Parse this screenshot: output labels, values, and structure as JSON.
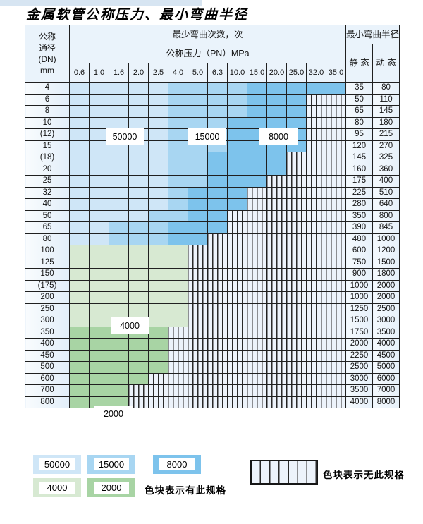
{
  "title": "金属软管公称压力、最小弯曲半径",
  "colors": {
    "l50": "#cfe6f7",
    "m15": "#a8d6f2",
    "d8": "#7dc3ec",
    "g4": "#d7e9d2",
    "g2": "#a8d4a4",
    "hatch_bg": "#edf3fb",
    "hatch_line": "#2a2a2a",
    "header_bg": "#eaf3fb",
    "border": "#202020"
  },
  "table": {
    "header": {
      "dn_lines": [
        "公称",
        "通径",
        "(DN)",
        "mm"
      ],
      "bend_count_label": "最少弯曲次数，次",
      "pressure_label": "公称压力（PN）MPa",
      "radius_label": "最小弯曲半径",
      "static_label": "静 态",
      "dynamic_label": "动 态"
    },
    "pressure_columns": [
      "0.6",
      "1.0",
      "1.6",
      "2.0",
      "2.5",
      "4.0",
      "5.0",
      "6.3",
      "10.0",
      "15.0",
      "20.0",
      "25.0",
      "32.0",
      "35.0"
    ],
    "zone_key": {
      "L": "50000",
      "M": "15000",
      "D": "8000",
      "G": "4000",
      "g": "2000",
      "H": "no_spec"
    },
    "rows": [
      {
        "dn": "4",
        "zones": "LLLLLMMMMDDDDD",
        "static": "35",
        "dynamic": "80"
      },
      {
        "dn": "6",
        "zones": "LLLLLMMMMDDDHH",
        "static": "50",
        "dynamic": "110"
      },
      {
        "dn": "8",
        "zones": "LLLLLMMMMDDDHH",
        "static": "65",
        "dynamic": "145"
      },
      {
        "dn": "10",
        "zones": "LLLLLMMMDDDDHH",
        "static": "80",
        "dynamic": "180"
      },
      {
        "dn": "(12)",
        "zones": "LLLLLMMMDDDDHH",
        "static": "95",
        "dynamic": "215"
      },
      {
        "dn": "15",
        "zones": "LLLLLMMMDDDDHH",
        "static": "120",
        "dynamic": "270"
      },
      {
        "dn": "(18)",
        "zones": "LLLLLMMDDDDHHH",
        "static": "145",
        "dynamic": "325"
      },
      {
        "dn": "20",
        "zones": "LLLLLMMDDDDHHH",
        "static": "160",
        "dynamic": "360"
      },
      {
        "dn": "25",
        "zones": "LLLLLMMDDDHHHH",
        "static": "175",
        "dynamic": "400"
      },
      {
        "dn": "32",
        "zones": "LLLLLMDDDHHHHH",
        "static": "225",
        "dynamic": "510"
      },
      {
        "dn": "40",
        "zones": "LLLLLMDDDHHHHH",
        "static": "280",
        "dynamic": "640"
      },
      {
        "dn": "50",
        "zones": "LLLLMMDDHHHHHH",
        "static": "350",
        "dynamic": "800"
      },
      {
        "dn": "65",
        "zones": "LLMMMDDDHHHHHH",
        "static": "390",
        "dynamic": "845"
      },
      {
        "dn": "80",
        "zones": "LLMMMDDHHHHHHH",
        "static": "480",
        "dynamic": "1000"
      },
      {
        "dn": "100",
        "zones": "GGGGGGHHHHHHHH",
        "static": "600",
        "dynamic": "1200"
      },
      {
        "dn": "125",
        "zones": "GGGGGGHHHHHHHH",
        "static": "750",
        "dynamic": "1500"
      },
      {
        "dn": "150",
        "zones": "GGGGGGHHHHHHHH",
        "static": "900",
        "dynamic": "1800"
      },
      {
        "dn": "(175)",
        "zones": "GGGGGGHHHHHHHH",
        "static": "1000",
        "dynamic": "2000"
      },
      {
        "dn": "200",
        "zones": "GGGGGGHHHHHHHH",
        "static": "1000",
        "dynamic": "2000"
      },
      {
        "dn": "250",
        "zones": "GGGGGGHHHHHHHH",
        "static": "1250",
        "dynamic": "2500"
      },
      {
        "dn": "300",
        "zones": "GGGGGGHHHHHHHH",
        "static": "1500",
        "dynamic": "3000"
      },
      {
        "dn": "350",
        "zones": "gggggHHHHHHHHH",
        "static": "1750",
        "dynamic": "3500"
      },
      {
        "dn": "400",
        "zones": "gggggHHHHHHHHH",
        "static": "2000",
        "dynamic": "4000"
      },
      {
        "dn": "450",
        "zones": "gggggHHHHHHHHH",
        "static": "2250",
        "dynamic": "4500"
      },
      {
        "dn": "500",
        "zones": "gggggHHHHHHHHH",
        "static": "2500",
        "dynamic": "5000"
      },
      {
        "dn": "600",
        "zones": "ggggHHHHHHHHHH",
        "static": "3000",
        "dynamic": "6000"
      },
      {
        "dn": "700",
        "zones": "gggHHHHHHHHHHH",
        "static": "3500",
        "dynamic": "7000"
      },
      {
        "dn": "800",
        "zones": "gggHHHHHHHHHHH",
        "static": "4000",
        "dynamic": "8000"
      }
    ]
  },
  "grid_labels": {
    "b50000": "50000",
    "b15000": "15000",
    "b8000": "8000",
    "g4000": "4000",
    "g2000": "2000"
  },
  "legend": {
    "swatches": [
      {
        "label": "50000"
      },
      {
        "label": "15000"
      },
      {
        "label": "8000"
      },
      {
        "label": "4000"
      },
      {
        "label": "2000"
      }
    ],
    "has_spec_text": "色块表示有此规格",
    "no_spec_text": "色块表示无此规格"
  }
}
